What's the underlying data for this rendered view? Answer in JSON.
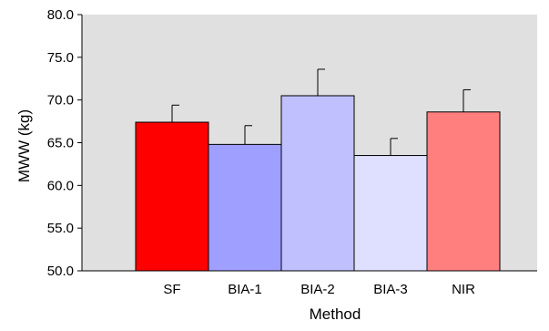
{
  "chart_data": {
    "type": "bar",
    "title": "",
    "xlabel": "Method",
    "ylabel": "MWW (kg)",
    "ylim": [
      50.0,
      80.0
    ],
    "yticks": [
      50.0,
      55.0,
      60.0,
      65.0,
      70.0,
      75.0,
      80.0
    ],
    "ytick_labels": [
      "50.0",
      "55.0",
      "60.0",
      "65.0",
      "70.0",
      "75.0",
      "80.0"
    ],
    "categories": [
      "SF",
      "BIA-1",
      "BIA-2",
      "BIA-3",
      "NIR"
    ],
    "values": [
      67.4,
      64.8,
      70.5,
      63.5,
      68.6
    ],
    "error_upper": [
      2.0,
      2.2,
      3.1,
      2.0,
      2.6
    ],
    "bar_colors": [
      "#ff0000",
      "#9f9fff",
      "#c0c0ff",
      "#dfdfff",
      "#ff7f7f"
    ],
    "plot_background": "#e0e0e0",
    "grid": false,
    "legend": "none"
  }
}
